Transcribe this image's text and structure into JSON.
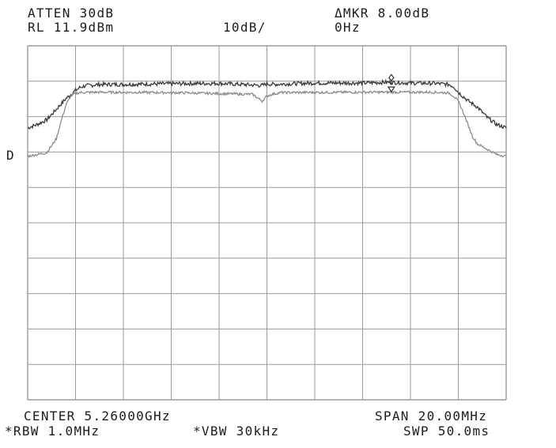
{
  "header": {
    "atten": "ATTEN 30dB",
    "ref_level": "RL 11.9dBm",
    "scale": "10dB/",
    "delta_marker": "ΔMKR 8.00dB",
    "marker_freq": "0Hz",
    "detector_flag": "D"
  },
  "footer": {
    "center": "CENTER 5.26000GHz",
    "span": "SPAN 20.00MHz",
    "rbw": "*RBW 1.0MHz",
    "vbw": "*VBW 30kHz",
    "sweep": "SWP 50.0ms"
  },
  "colors": {
    "grid": "#9a9a9a",
    "trace_upper": "#3a3a3a",
    "trace_lower": "#8c8c8c",
    "text": "#1c1c1c"
  },
  "chart_data": {
    "type": "line",
    "title": "",
    "xlabel": "",
    "ylabel": "",
    "x_unit": "MHz offset from center",
    "y_unit": "dBm",
    "xlim": [
      -10,
      10
    ],
    "ylim": [
      -88.1,
      11.9
    ],
    "grid": true,
    "divisions": {
      "x": 10,
      "y": 10
    },
    "series": [
      {
        "role": "upper-trace",
        "x": [
          -10,
          -9.6,
          -9.2,
          -8.8,
          -8.4,
          -8.0,
          -7.8,
          -7.6,
          -7.0,
          -6.0,
          -4.0,
          -2.0,
          -0.2,
          0.0,
          0.2,
          2.0,
          4.0,
          5.0,
          6.0,
          7.0,
          7.6,
          7.8,
          8.0,
          8.4,
          8.8,
          9.2,
          9.6,
          10
        ],
        "values": [
          -11.3,
          -10.3,
          -9.0,
          -6.0,
          -3.0,
          -0.7,
          0.2,
          0.6,
          1.0,
          1.0,
          1.2,
          1.3,
          0.7,
          1.2,
          1.0,
          1.4,
          1.4,
          1.6,
          1.4,
          1.3,
          1.0,
          0.4,
          -1.2,
          -3.6,
          -5.4,
          -8.3,
          -10.3,
          -11.3
        ]
      },
      {
        "role": "lower-trace",
        "x": [
          -10,
          -9.6,
          -9.2,
          -8.8,
          -8.6,
          -8.4,
          -8.2,
          -8.0,
          -7.8,
          -7.0,
          -4.0,
          -0.6,
          -0.2,
          0.0,
          0.2,
          0.6,
          4.0,
          7.0,
          7.6,
          7.8,
          8.0,
          8.2,
          8.4,
          8.6,
          8.8,
          9.2,
          9.6,
          10
        ],
        "values": [
          -19.3,
          -18.8,
          -18.3,
          -14.3,
          -9.3,
          -4.8,
          -2.3,
          -1.5,
          -1.3,
          -1.2,
          -1.3,
          -1.8,
          -3.7,
          -2.3,
          -1.8,
          -1.3,
          -1.2,
          -1.2,
          -1.4,
          -2.3,
          -3.8,
          -6.8,
          -10.3,
          -13.8,
          -15.8,
          -17.3,
          -18.8,
          -19.3
        ]
      }
    ],
    "markers": [
      {
        "name": "marker-diamond",
        "x": 5.2,
        "y": 2.9
      },
      {
        "name": "marker-triangle",
        "x": 5.2,
        "y": -0.4
      }
    ]
  }
}
